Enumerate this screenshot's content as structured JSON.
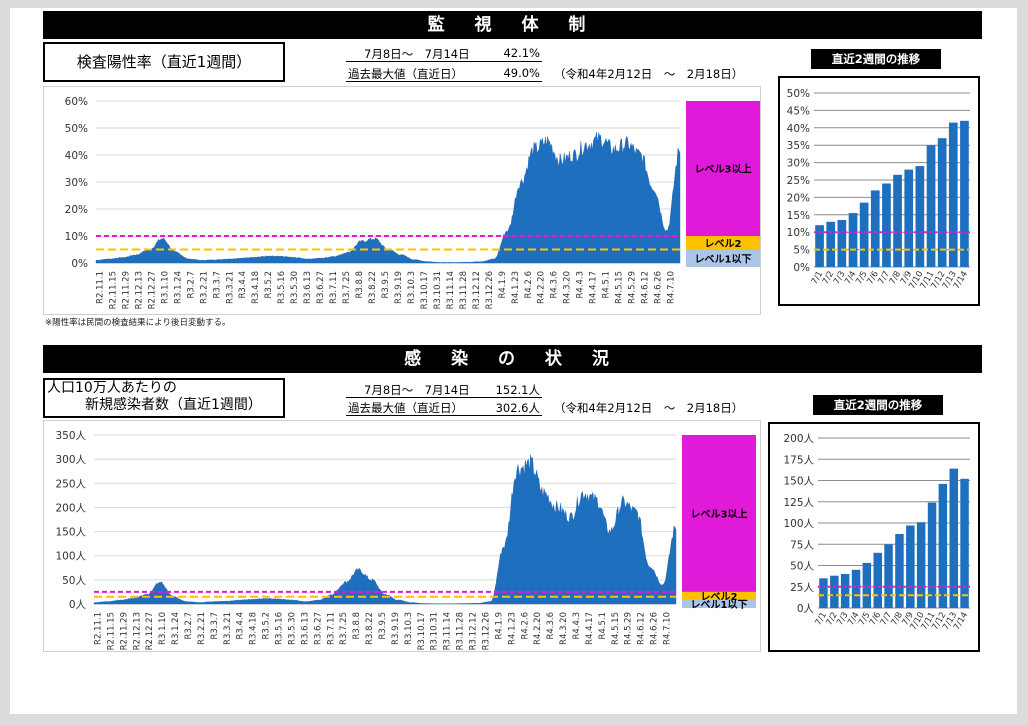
{
  "section1": {
    "banner": "監 視 体 制",
    "title": "検査陽性率（直近1週間）",
    "period_label": "7月8日～　7月14日",
    "period_value": "42.1%",
    "max_label": "過去最大値（直近日）",
    "max_value": "49.0%",
    "max_date": "（令和4年2月12日　～　2月18日）",
    "note": "※陽性率は民間の検査結果により後日変動する。",
    "side_title": "直近2週間の推移"
  },
  "section2": {
    "banner": "感 染 の 状 況",
    "title_line1": "人口10万人あたりの",
    "title_line2": "新規感染者数（直近1週間）",
    "period_label": "7月8日～　7月14日",
    "period_value": "152.1人",
    "max_label": "過去最大値（直近日）",
    "max_value": "302.6人",
    "max_date": "（令和4年2月12日　～　2月18日）",
    "side_title": "直近2週間の推移"
  },
  "colors": {
    "bar": "#1f6fbf",
    "level3": "#e01ad8",
    "level2": "#ffc000",
    "level1": "#a9c6e8",
    "level3_line": "#e01ad8",
    "level2_line": "#ffc000"
  },
  "chart_data": [
    {
      "type": "area",
      "title": "検査陽性率（直近1週間）",
      "x": [
        "R2.11.1",
        "R2.11.15",
        "R2.11.29",
        "R2.12.13",
        "R2.12.27",
        "R3.1.10",
        "R3.1.24",
        "R3.2.7",
        "R3.2.21",
        "R3.3.7",
        "R3.3.21",
        "R3.4.4",
        "R3.4.18",
        "R3.5.2",
        "R3.5.16",
        "R3.5.30",
        "R3.6.13",
        "R3.6.27",
        "R3.7.11",
        "R3.7.25",
        "R3.8.8",
        "R3.8.22",
        "R3.9.5",
        "R3.9.19",
        "R3.10.3",
        "R3.10.17",
        "R3.10.31",
        "R3.11.14",
        "R3.11.28",
        "R3.12.12",
        "R3.12.26",
        "R4.1.9",
        "R4.1.23",
        "R4.2.6",
        "R4.2.20",
        "R4.3.6",
        "R4.3.20",
        "R4.4.3",
        "R4.4.17",
        "R4.5.1",
        "R4.5.15",
        "R4.5.29",
        "R4.6.12",
        "R4.6.26",
        "R4.7.10"
      ],
      "values": [
        1,
        1.5,
        2,
        3,
        5,
        9,
        4,
        1.5,
        1,
        1.2,
        1.5,
        1.8,
        2.2,
        2.5,
        2.4,
        2,
        1.5,
        1.8,
        2.5,
        4,
        8,
        9,
        5,
        3,
        1.2,
        0.5,
        0.2,
        0.2,
        0.3,
        0.5,
        1.5,
        12,
        30,
        42,
        45,
        38,
        40,
        44,
        46,
        42,
        44,
        40,
        28,
        12,
        42
      ],
      "ylim": [
        0,
        60
      ],
      "yticks": [
        "0%",
        "10%",
        "20%",
        "30%",
        "40%",
        "50%",
        "60%"
      ],
      "thresholds": [
        {
          "label": "レベル3以上",
          "value": 10
        },
        {
          "label": "レベル2",
          "value": 5
        },
        {
          "label": "レベル1以下",
          "value": 0
        }
      ]
    },
    {
      "type": "bar",
      "title": "直近2週間の推移",
      "categories": [
        "7/1",
        "7/2",
        "7/3",
        "7/4",
        "7/5",
        "7/6",
        "7/7",
        "7/8",
        "7/9",
        "7/10",
        "7/11",
        "7/12",
        "7/13",
        "7/14"
      ],
      "values": [
        12,
        13,
        13.5,
        15.5,
        18.5,
        22,
        24,
        26.5,
        28,
        29,
        35,
        37,
        41.5,
        42
      ],
      "ylim": [
        0,
        50
      ],
      "yticks": [
        "0%",
        "5%",
        "10%",
        "15%",
        "20%",
        "25%",
        "30%",
        "35%",
        "40%",
        "45%",
        "50%"
      ],
      "level3_line": 10,
      "level2_line": 5
    },
    {
      "type": "area",
      "title": "人口10万人あたりの新規感染者数（直近1週間）",
      "x": [
        "R2.11.1",
        "R2.11.15",
        "R2.11.29",
        "R2.12.13",
        "R2.12.27",
        "R3.1.10",
        "R3.1.24",
        "R3.2.7",
        "R3.2.21",
        "R3.3.7",
        "R3.3.21",
        "R3.4.4",
        "R3.4.18",
        "R3.5.2",
        "R3.5.16",
        "R3.5.30",
        "R3.6.13",
        "R3.6.27",
        "R3.7.11",
        "R3.7.25",
        "R3.8.8",
        "R3.8.22",
        "R3.9.5",
        "R3.9.19",
        "R3.10.3",
        "R3.10.17",
        "R3.10.31",
        "R3.11.14",
        "R3.11.28",
        "R3.12.12",
        "R3.12.26",
        "R4.1.9",
        "R4.1.23",
        "R4.2.6",
        "R4.2.20",
        "R4.3.6",
        "R4.3.20",
        "R4.4.3",
        "R4.4.17",
        "R4.5.1",
        "R4.5.15",
        "R4.5.29",
        "R4.6.12",
        "R4.6.26",
        "R4.7.10"
      ],
      "values": [
        3,
        5,
        8,
        12,
        20,
        45,
        15,
        5,
        3,
        5,
        6,
        8,
        10,
        11,
        10,
        8,
        5,
        8,
        20,
        45,
        70,
        50,
        20,
        8,
        3,
        1,
        0.5,
        0.5,
        1,
        1.5,
        5,
        120,
        280,
        290,
        230,
        200,
        180,
        230,
        215,
        150,
        210,
        190,
        80,
        40,
        160
      ],
      "ylim": [
        0,
        350
      ],
      "yticks": [
        "0人",
        "50人",
        "100人",
        "150人",
        "200人",
        "250人",
        "300人",
        "350人"
      ],
      "thresholds": [
        {
          "label": "レベル3以上",
          "value": 25
        },
        {
          "label": "レベル2",
          "value": 15
        },
        {
          "label": "レベル1以下",
          "value": 0
        }
      ]
    },
    {
      "type": "bar",
      "title": "直近2週間の推移",
      "categories": [
        "7/1",
        "7/2",
        "7/3",
        "7/4",
        "7/5",
        "7/6",
        "7/7",
        "7/8",
        "7/9",
        "7/10",
        "7/11",
        "7/12",
        "7/13",
        "7/14"
      ],
      "values": [
        35,
        38,
        40,
        45,
        53,
        65,
        75,
        87,
        97,
        101,
        124,
        146,
        164,
        152
      ],
      "ylim": [
        0,
        200
      ],
      "yticks": [
        "0人",
        "25人",
        "50人",
        "75人",
        "100人",
        "125人",
        "150人",
        "175人",
        "200人"
      ],
      "level3_line": 25,
      "level2_line": 15
    }
  ]
}
